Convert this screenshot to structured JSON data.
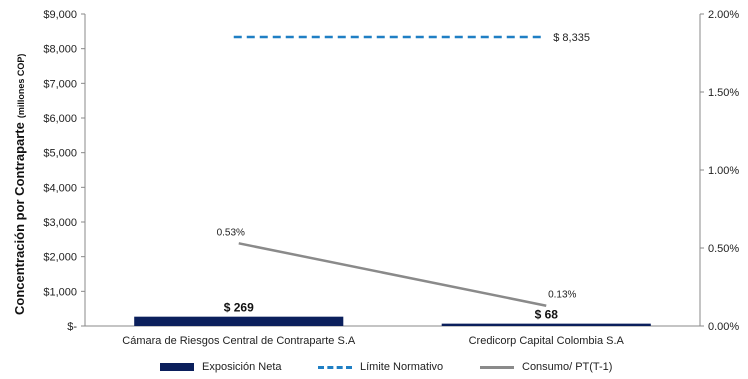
{
  "chart_data": {
    "type": "bar",
    "categories": [
      "Cámara de Riesgos Central de Contraparte S.A",
      "Credicorp Capital Colombia S.A"
    ],
    "ylabel": "Concentración por Contraparte",
    "ylabel_unit": "(millones COP)",
    "ylim": [
      0,
      9000
    ],
    "y_ticks": [
      "$-",
      "$1,000",
      "$2,000",
      "$3,000",
      "$4,000",
      "$5,000",
      "$6,000",
      "$7,000",
      "$8,000",
      "$9,000"
    ],
    "y2lim": [
      0,
      0.02
    ],
    "y2_ticks": [
      "0.00%",
      "0.50%",
      "1.00%",
      "1.50%",
      "2.00%"
    ],
    "grid": false,
    "legend_position": "bottom",
    "series": [
      {
        "name": "Exposición Neta",
        "kind": "bar",
        "axis": "left",
        "color": "#0b1f5c",
        "values": [
          269,
          68
        ],
        "labels": [
          "$ 269",
          "$ 68"
        ]
      },
      {
        "name": "Límite Normativo",
        "kind": "line",
        "style": "dashed",
        "axis": "left",
        "color": "#1f7fc4",
        "values": [
          8335,
          8335
        ],
        "label": "$ 8,335"
      },
      {
        "name": "Consumo/ PT(T-1)",
        "kind": "line",
        "axis": "right",
        "color": "#8a8a8a",
        "values": [
          0.0053,
          0.0013
        ],
        "labels": [
          "0.53%",
          "0.13%"
        ]
      }
    ]
  }
}
